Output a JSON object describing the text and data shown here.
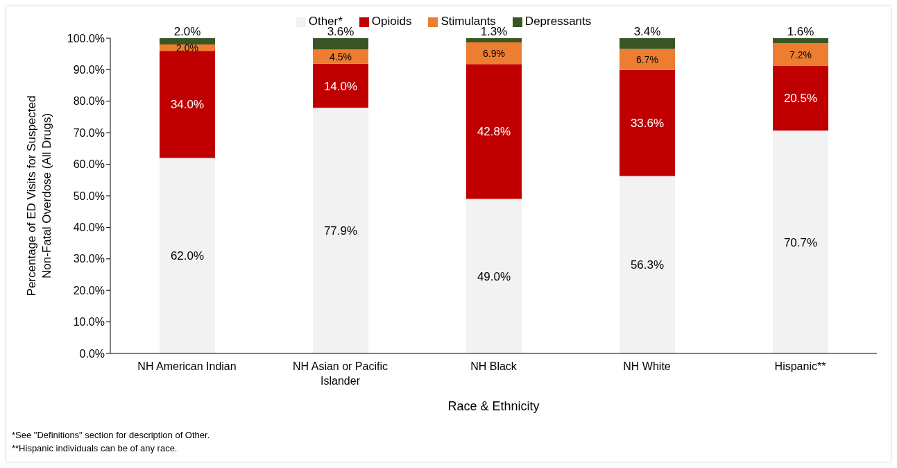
{
  "chart_data": {
    "type": "bar",
    "stacked": true,
    "xlabel": "Race & Ethnicity",
    "ylabel": "Percentage of ED Visits for Suspected Non-Fatal Overdose (All Drugs)",
    "categories": [
      "NH American Indian",
      "NH Asian or Pacific Islander",
      "NH Black",
      "NH White",
      "Hispanic**"
    ],
    "series": [
      {
        "name": "Other*",
        "color": "#f2f2f2",
        "values": [
          62.0,
          77.9,
          49.0,
          56.3,
          70.7
        ],
        "value_labels": [
          "62.0%",
          "77.9%",
          "49.0%",
          "56.3%",
          "70.7%"
        ]
      },
      {
        "name": "Opioids",
        "color": "#c00000",
        "values": [
          34.0,
          14.0,
          42.8,
          33.6,
          20.5
        ],
        "value_labels": [
          "34.0%",
          "14.0%",
          "42.8%",
          "33.6%",
          "20.5%"
        ]
      },
      {
        "name": "Stimulants",
        "color": "#ed7d31",
        "values": [
          2.0,
          4.5,
          6.9,
          6.7,
          7.2
        ],
        "value_labels": [
          "2.0%",
          "4.5%",
          "6.9%",
          "6.7%",
          "7.2%"
        ]
      },
      {
        "name": "Depressants",
        "color": "#375623",
        "values": [
          2.0,
          3.6,
          1.3,
          3.4,
          1.6
        ],
        "value_labels": [
          "2.0%",
          "3.6%",
          "1.3%",
          "3.4%",
          "1.6%"
        ]
      }
    ],
    "ylim": [
      0,
      100
    ],
    "yticks": [
      {
        "value": 0,
        "label": "0.0%"
      },
      {
        "value": 10,
        "label": "10.0%"
      },
      {
        "value": 20,
        "label": "20.0%"
      },
      {
        "value": 30,
        "label": "30.0%"
      },
      {
        "value": 40,
        "label": "40.0%"
      },
      {
        "value": 50,
        "label": "50.0%"
      },
      {
        "value": 60,
        "label": "60.0%"
      },
      {
        "value": 70,
        "label": "70.0%"
      },
      {
        "value": 80,
        "label": "80.0%"
      },
      {
        "value": 90,
        "label": "90.0%"
      },
      {
        "value": 100,
        "label": "100.0%"
      }
    ],
    "grid": false,
    "legend": "top",
    "annotations": [
      "*See \"Definitions\" section for description of Other.",
      "**Hispanic individuals can be of any race."
    ]
  }
}
